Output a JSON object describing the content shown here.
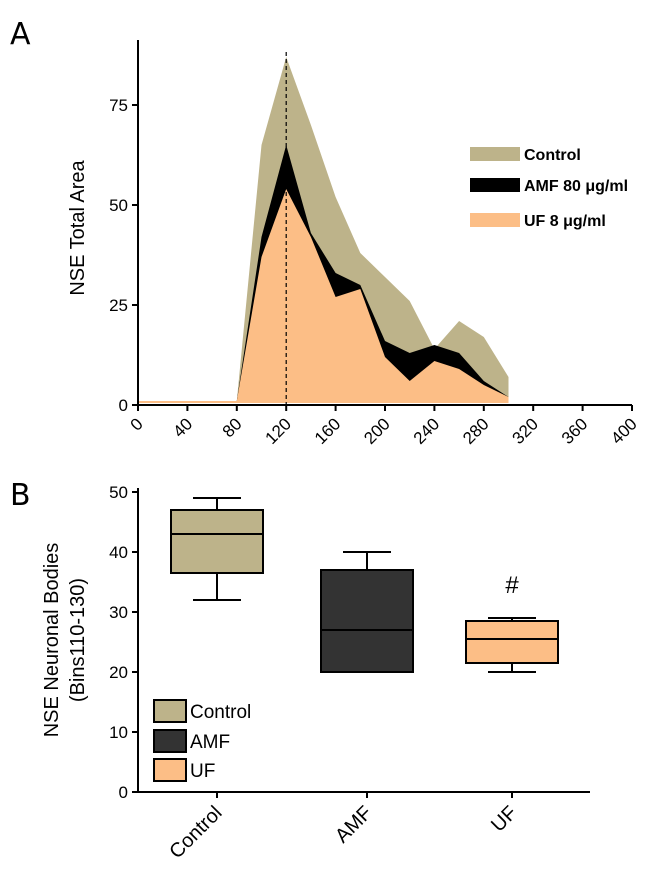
{
  "colors": {
    "control": "#BDB38A",
    "amf": "#000000",
    "uf": "#FCBE86",
    "amf_box": "#333333"
  },
  "panels": {
    "a": {
      "letter": "A"
    },
    "b": {
      "letter": "B"
    }
  },
  "chart_data": [
    {
      "type": "area",
      "panel": "A",
      "ylabel": "NSE Total Area",
      "xlabel": "",
      "xlim": [
        0,
        400
      ],
      "ylim": [
        0,
        90
      ],
      "x_ticks": [
        0,
        40,
        80,
        120,
        160,
        200,
        240,
        280,
        320,
        360,
        400
      ],
      "y_ticks": [
        0,
        25,
        50,
        75
      ],
      "reference_line_x": 120,
      "legend_position": "right",
      "x": [
        0,
        80,
        100,
        120,
        140,
        160,
        180,
        200,
        220,
        240,
        260,
        280,
        300
      ],
      "series": [
        {
          "name": "Control",
          "color": "#BDB38A",
          "values": [
            1,
            1,
            65,
            87,
            70,
            52,
            38,
            32,
            26,
            14,
            21,
            17,
            7
          ]
        },
        {
          "name": "AMF 80 μg/ml",
          "color": "#000000",
          "values": [
            1,
            1,
            42,
            65,
            43,
            33,
            30,
            16,
            13,
            15,
            13,
            6,
            2
          ]
        },
        {
          "name": "UF 8 μg/ml",
          "color": "#FCBE86",
          "values": [
            1,
            1,
            37,
            54,
            42,
            27,
            29,
            12,
            6,
            11,
            9,
            5,
            2
          ]
        }
      ]
    },
    {
      "type": "box",
      "panel": "B",
      "ylabel": "NSE Neuronal Bodies",
      "ylabel2": "(Bins110-130)",
      "xlabel": "",
      "ylim": [
        0,
        50
      ],
      "y_ticks": [
        0,
        10,
        20,
        30,
        40,
        50
      ],
      "categories": [
        "Control",
        "AMF",
        "UF"
      ],
      "legend_position": "bottom-left",
      "legend": [
        "Control",
        "AMF",
        "UF"
      ],
      "annotations": [
        {
          "category": "UF",
          "text": "#"
        }
      ],
      "boxes": [
        {
          "name": "Control",
          "color": "#BDB38A",
          "min": 32,
          "q1": 36.5,
          "median": 43,
          "q3": 47,
          "max": 49
        },
        {
          "name": "AMF",
          "color": "#333333",
          "min": 20,
          "q1": 20,
          "median": 27,
          "q3": 37,
          "max": 40
        },
        {
          "name": "UF",
          "color": "#FCBE86",
          "min": 20,
          "q1": 21.5,
          "median": 25.5,
          "q3": 28.5,
          "max": 29
        }
      ]
    }
  ]
}
